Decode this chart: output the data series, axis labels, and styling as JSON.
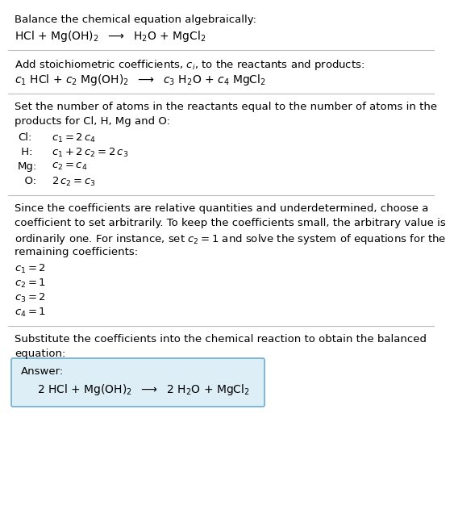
{
  "bg_color": "#ffffff",
  "text_color": "#000000",
  "box_bg_color": "#ddeef6",
  "box_border_color": "#6aaed6",
  "separator_color": "#bbbbbb",
  "font_size": 9.5,
  "font_family": "DejaVu Sans",
  "sec1_line1": "Balance the chemical equation algebraically:",
  "sec1_formula": "HCl + Mg(OH)$_2$  $\\longrightarrow$  H$_2$O + MgCl$_2$",
  "sec2_line1": "Add stoichiometric coefficients, $c_i$, to the reactants and products:",
  "sec2_formula": "$c_1$ HCl + $c_2$ Mg(OH)$_2$  $\\longrightarrow$  $c_3$ H$_2$O + $c_4$ MgCl$_2$",
  "sec3_line1": "Set the number of atoms in the reactants equal to the number of atoms in the",
  "sec3_line2": "products for Cl, H, Mg and O:",
  "sec3_eq_labels": [
    "Cl:",
    " H:",
    "Mg:",
    "  O:"
  ],
  "sec3_equations": [
    "$c_1 = 2\\,c_4$",
    "$c_1 + 2\\,c_2 = 2\\,c_3$",
    "$c_2 = c_4$",
    "$2\\,c_2 = c_3$"
  ],
  "sec4_line1": "Since the coefficients are relative quantities and underdetermined, choose a",
  "sec4_line2": "coefficient to set arbitrarily. To keep the coefficients small, the arbitrary value is",
  "sec4_line3": "ordinarily one. For instance, set $c_2 = 1$ and solve the system of equations for the",
  "sec4_line4": "remaining coefficients:",
  "sec4_solutions": [
    "$c_1 = 2$",
    "$c_2 = 1$",
    "$c_3 = 2$",
    "$c_4 = 1$"
  ],
  "sec5_line1": "Substitute the coefficients into the chemical reaction to obtain the balanced",
  "sec5_line2": "equation:",
  "answer_label": "Answer:",
  "answer_formula": "2 HCl + Mg(OH)$_2$  $\\longrightarrow$  2 H$_2$O + MgCl$_2$"
}
